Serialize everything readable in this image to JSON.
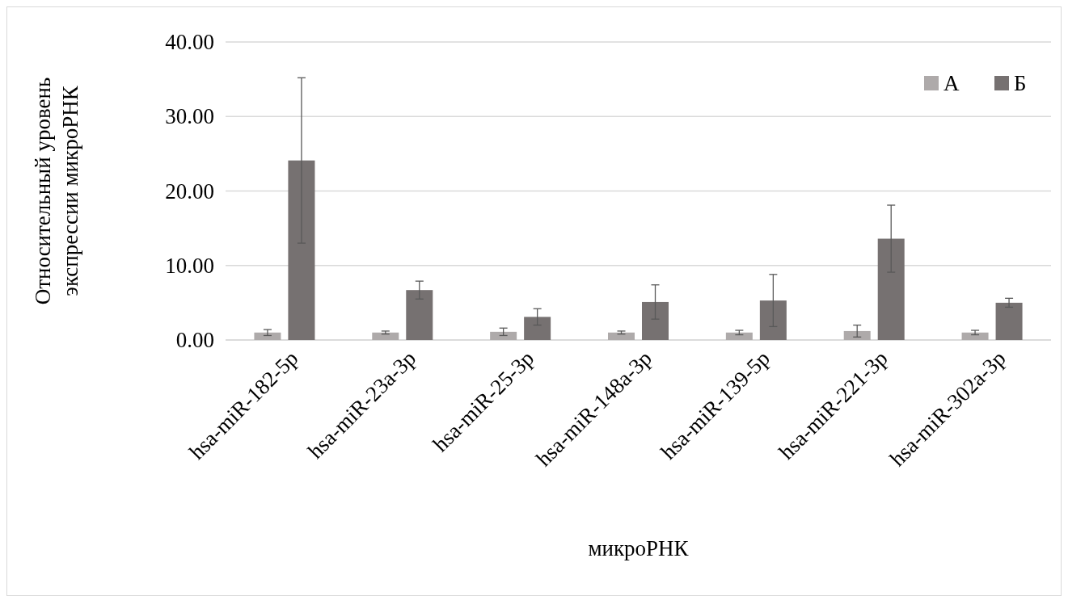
{
  "chart_data": {
    "type": "bar",
    "xlabel": "микроРНК",
    "ylabel": "Относительный уровень экспрессии микроРНК",
    "categories": [
      "hsa-miR-182-5p",
      "hsa-miR-23a-3p",
      "hsa-miR-25-3p",
      "hsa-miR-148a-3p",
      "hsa-miR-139-5p",
      "hsa-miR-221-3p",
      "hsa-miR-302a-3p"
    ],
    "series": [
      {
        "name": "А",
        "color": "#aeaaaa",
        "values": [
          1.0,
          1.0,
          1.1,
          1.0,
          1.0,
          1.2,
          1.0
        ],
        "errors": [
          0.4,
          0.2,
          0.5,
          0.2,
          0.3,
          0.8,
          0.3
        ]
      },
      {
        "name": "Б",
        "color": "#767171",
        "values": [
          24.1,
          6.7,
          3.1,
          5.1,
          5.3,
          13.6,
          5.0
        ],
        "errors": [
          11.1,
          1.2,
          1.1,
          2.3,
          3.5,
          4.5,
          0.6
        ]
      }
    ],
    "ylim": [
      0,
      40
    ],
    "yticks": [
      {
        "value": 0,
        "label": "0.00"
      },
      {
        "value": 10,
        "label": "10.00"
      },
      {
        "value": 20,
        "label": "20.00"
      },
      {
        "value": 30,
        "label": "30.00"
      },
      {
        "value": 40,
        "label": "40.00"
      }
    ],
    "grid": "y",
    "legend": "top right"
  }
}
